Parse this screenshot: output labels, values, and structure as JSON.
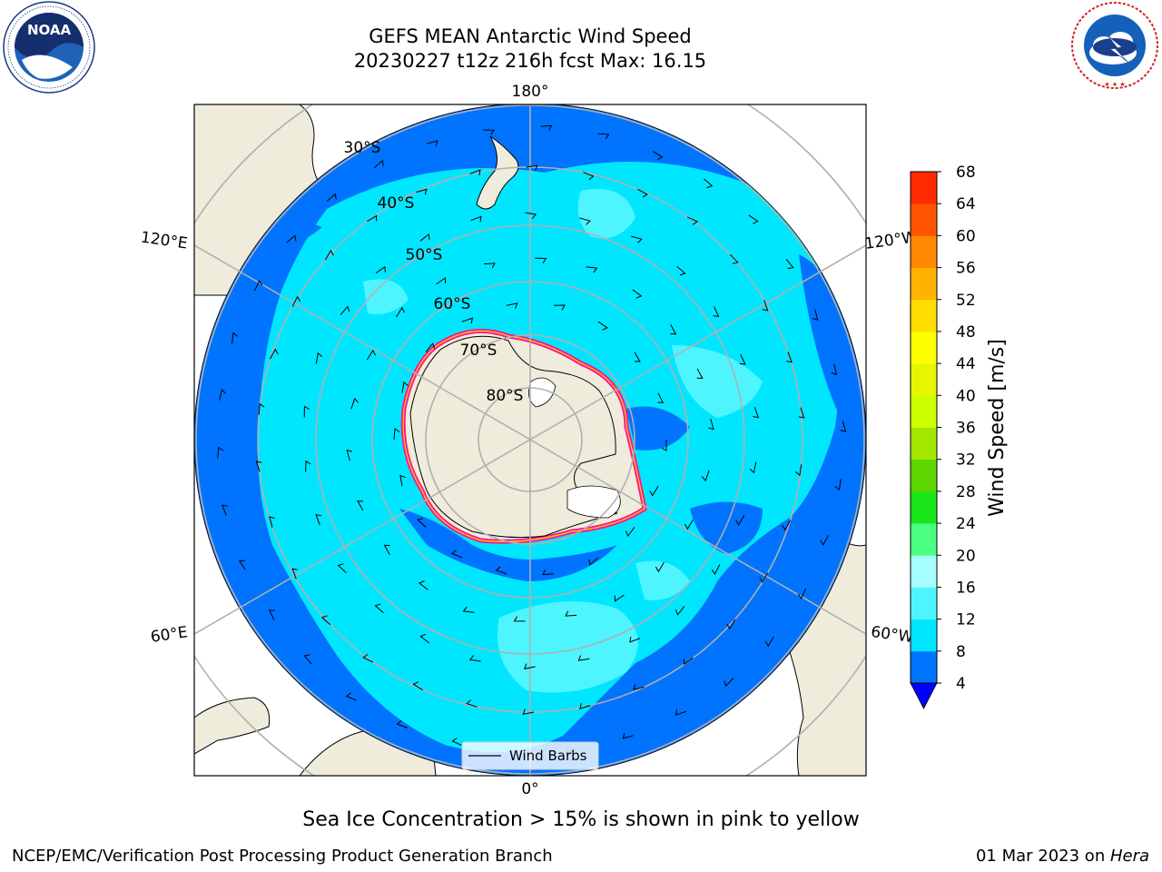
{
  "header": {
    "title": "GEFS MEAN Antarctic Wind Speed",
    "subtitle": "20230227 t12z 216h fcst   Max: 16.15"
  },
  "logos": {
    "left": {
      "text": "NOAA",
      "ring_text": "NATIONAL OCEANIC AND ATMOSPHERIC ADMINISTRATION • U.S. DEPARTMENT OF COMMERCE"
    },
    "right": {
      "ring_text": "NATIONAL WEATHER SERVICE"
    }
  },
  "map": {
    "projection": "south-polar-stereographic",
    "longitude_labels": {
      "top": "180°",
      "bottom": "0°",
      "upper_left": "120°E",
      "lower_left": "60°E",
      "upper_right": "120°W",
      "lower_right": "60°W"
    },
    "latitude_labels": [
      "30°S",
      "40°S",
      "50°S",
      "60°S",
      "70°S",
      "80°S"
    ],
    "legend_label": "Wind Barbs",
    "colors": {
      "land": "#efecdc",
      "ocean_low": "#0073ff",
      "ocean_mid": "#00e6ff",
      "ocean_high": "#4ef5ff",
      "ice_edge": "#ff1493",
      "grid": "#b0b0b0"
    }
  },
  "colorbar": {
    "label": "Wind Speed [m/s]",
    "ticks": [
      "4",
      "8",
      "12",
      "16",
      "20",
      "24",
      "28",
      "32",
      "36",
      "40",
      "44",
      "48",
      "52",
      "56",
      "60",
      "64",
      "68"
    ],
    "colors": [
      "#0073ff",
      "#00e6ff",
      "#4ef5ff",
      "#a5fdff",
      "#4dff80",
      "#19e619",
      "#5ed600",
      "#a3e600",
      "#ccff00",
      "#e6f500",
      "#ffff00",
      "#ffdd00",
      "#ffb300",
      "#ff8800",
      "#ff5500",
      "#ff2a00"
    ],
    "extend_color": "#0000ff"
  },
  "caption": "Sea Ice Concentration > 15% is shown in pink to yellow",
  "footer": {
    "left": "NCEP/EMC/Verification Post Processing Product Generation Branch",
    "right_date": "01 Mar 2023 on ",
    "right_host": "Hera"
  }
}
